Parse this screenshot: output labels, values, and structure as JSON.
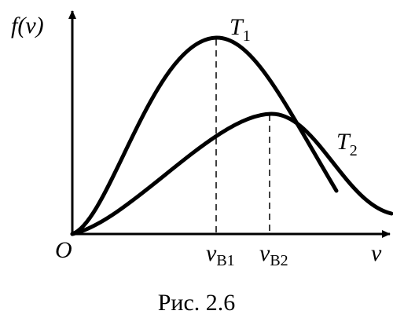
{
  "axes": {
    "y_label": "f(v)",
    "x_label": "v",
    "origin": "O"
  },
  "curves": [
    {
      "label": {
        "base": "T",
        "sub": "1"
      }
    },
    {
      "label": {
        "base": "T",
        "sub": "2"
      }
    }
  ],
  "markers": [
    {
      "base": "v",
      "sub": "B1"
    },
    {
      "base": "v",
      "sub": "B2"
    }
  ],
  "caption": "Рис. 2.6"
}
